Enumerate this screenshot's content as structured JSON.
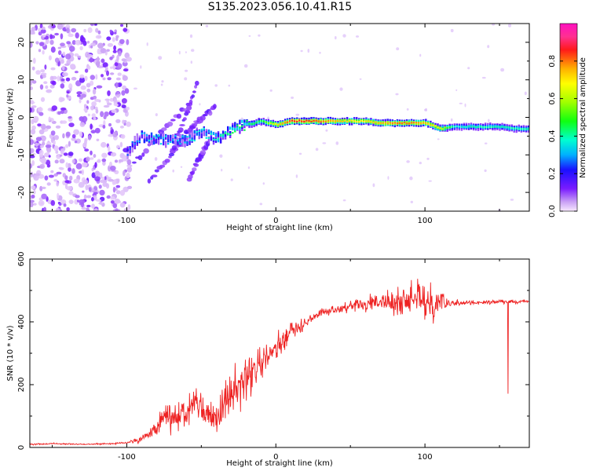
{
  "figure_title": "S135.2023.056.10.41.R15",
  "colors": {
    "snr_line": "#ee2222",
    "axes": "#000000",
    "background": "#ffffff"
  },
  "chart_data": [
    {
      "type": "heatmap",
      "title": "S135.2023.056.10.41.R15",
      "xlabel": "Height of straight line (km)",
      "ylabel": "Frequency (Hz)",
      "xlim": [
        -165,
        170
      ],
      "ylim": [
        -25,
        25
      ],
      "xticks": [
        -100,
        0,
        100
      ],
      "yticks": [
        -20,
        -10,
        0,
        10,
        20
      ],
      "colorbar": {
        "label": "Normalized spectral amplitude",
        "range": [
          0,
          1
        ],
        "ticks": [
          "0.0",
          "0.2",
          "0.4",
          "0.6",
          "0.8"
        ],
        "colormap": "gist_ncar"
      },
      "ridge": {
        "x": [
          -100,
          -90,
          -80,
          -70,
          -60,
          -50,
          -40,
          -30,
          -20,
          -10,
          0,
          10,
          20,
          30,
          40,
          50,
          60,
          70,
          80,
          90,
          100,
          110,
          120,
          130,
          140,
          150,
          160,
          170
        ],
        "freq": [
          -9,
          -5,
          -6,
          -6,
          -6,
          -4,
          -6,
          -3,
          -2,
          -1,
          -2,
          -1,
          -1,
          -1,
          -1,
          -1,
          -1,
          -1.5,
          -1.5,
          -1.5,
          -1.5,
          -3,
          -2.5,
          -2.5,
          -2.5,
          -2.5,
          -3,
          -3
        ],
        "amplitude": [
          0.25,
          0.3,
          0.35,
          0.3,
          0.35,
          0.35,
          0.4,
          0.45,
          0.45,
          0.45,
          0.7,
          0.85,
          0.85,
          0.8,
          0.75,
          0.7,
          0.7,
          0.75,
          0.8,
          0.8,
          0.75,
          0.65,
          0.35,
          0.4,
          0.4,
          0.4,
          0.4,
          0.4
        ]
      }
    },
    {
      "type": "line",
      "xlabel": "Height of straight line (km)",
      "ylabel": "SNR (10 * v/v)",
      "xlim": [
        -165,
        170
      ],
      "ylim": [
        0,
        600
      ],
      "xticks": [
        -100,
        0,
        100
      ],
      "yticks": [
        0,
        200,
        400,
        600
      ],
      "series": [
        {
          "x": [
            -165,
            -150,
            -130,
            -110,
            -100,
            -90,
            -80,
            -75,
            -70,
            -60,
            -55,
            -50,
            -40,
            -35,
            -30,
            -25,
            -20,
            -15,
            -10,
            -5,
            0,
            5,
            10,
            15,
            20,
            30,
            40,
            50,
            60,
            70,
            80,
            90,
            95,
            100,
            105,
            110,
            115,
            120,
            130,
            140,
            150,
            160,
            170
          ],
          "values": [
            10,
            12,
            10,
            12,
            15,
            30,
            60,
            100,
            90,
            110,
            150,
            120,
            90,
            150,
            170,
            200,
            210,
            240,
            260,
            300,
            320,
            340,
            370,
            380,
            400,
            430,
            440,
            450,
            455,
            460,
            460,
            470,
            480,
            470,
            460,
            470,
            465,
            460,
            460,
            462,
            465,
            463,
            465
          ],
          "spread": [
            3,
            3,
            3,
            3,
            4,
            20,
            40,
            60,
            60,
            70,
            80,
            60,
            60,
            90,
            100,
            110,
            110,
            90,
            80,
            70,
            60,
            50,
            40,
            30,
            20,
            15,
            20,
            25,
            35,
            45,
            55,
            70,
            80,
            90,
            80,
            70,
            40,
            15,
            10,
            10,
            10,
            8,
            8
          ]
        }
      ]
    }
  ]
}
